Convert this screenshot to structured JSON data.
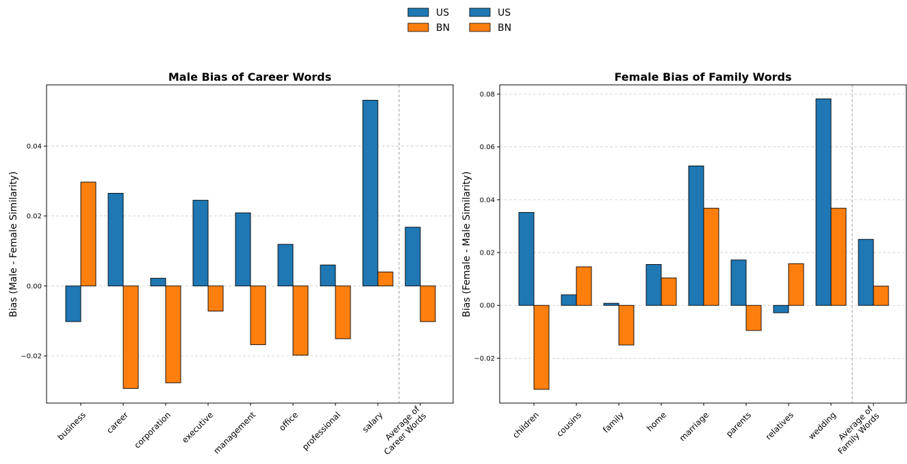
{
  "legend": {
    "entries": [
      {
        "label": "US",
        "color": "#1f77b4"
      },
      {
        "label": "BN",
        "color": "#ff7f0e"
      },
      {
        "label": "US",
        "color": "#1f77b4"
      },
      {
        "label": "BN",
        "color": "#ff7f0e"
      }
    ]
  },
  "colors": {
    "US": "#1f77b4",
    "BN": "#ff7f0e"
  },
  "chart_data": [
    {
      "type": "bar",
      "title": "Male Bias of Career Words",
      "xlabel": "",
      "ylabel": "Bias (Male - Female Similarity)",
      "ylim": [
        -0.0335,
        0.0575
      ],
      "yticks": [
        -0.02,
        0.0,
        0.02,
        0.04
      ],
      "ytick_labels": [
        "−0.02",
        "0.00",
        "0.02",
        "0.04"
      ],
      "categories": [
        "business",
        "career",
        "corporation",
        "executive",
        "management",
        "office",
        "professional",
        "salary",
        "Average of\nCareer Words"
      ],
      "series": [
        {
          "name": "US",
          "values": [
            -0.0102,
            0.0265,
            0.0022,
            0.0245,
            0.0209,
            0.0119,
            0.006,
            0.0531,
            0.0168
          ]
        },
        {
          "name": "BN",
          "values": [
            0.0297,
            -0.0293,
            -0.0277,
            -0.0072,
            -0.0168,
            -0.0198,
            -0.0151,
            0.004,
            -0.0102
          ]
        }
      ],
      "separator_after_index": 7,
      "grid": true
    },
    {
      "type": "bar",
      "title": "Female Bias of Family Words",
      "xlabel": "",
      "ylabel": "Bias (Female - Male Similarity)",
      "ylim": [
        -0.037,
        0.0835
      ],
      "yticks": [
        -0.02,
        0.0,
        0.02,
        0.04,
        0.06,
        0.08
      ],
      "ytick_labels": [
        "−0.02",
        "0.00",
        "0.02",
        "0.04",
        "0.06",
        "0.08"
      ],
      "categories": [
        "children",
        "cousins",
        "family",
        "home",
        "marriage",
        "parents",
        "relatives",
        "wedding",
        "Average of\nFamily Words"
      ],
      "series": [
        {
          "name": "US",
          "values": [
            0.0352,
            0.004,
            0.0008,
            0.0155,
            0.0528,
            0.0172,
            -0.0028,
            0.0782,
            0.025
          ]
        },
        {
          "name": "BN",
          "values": [
            -0.0318,
            0.0146,
            -0.015,
            0.0104,
            0.0368,
            -0.0095,
            0.0158,
            0.0368,
            0.0073
          ]
        }
      ],
      "separator_after_index": 7,
      "grid": true
    }
  ]
}
